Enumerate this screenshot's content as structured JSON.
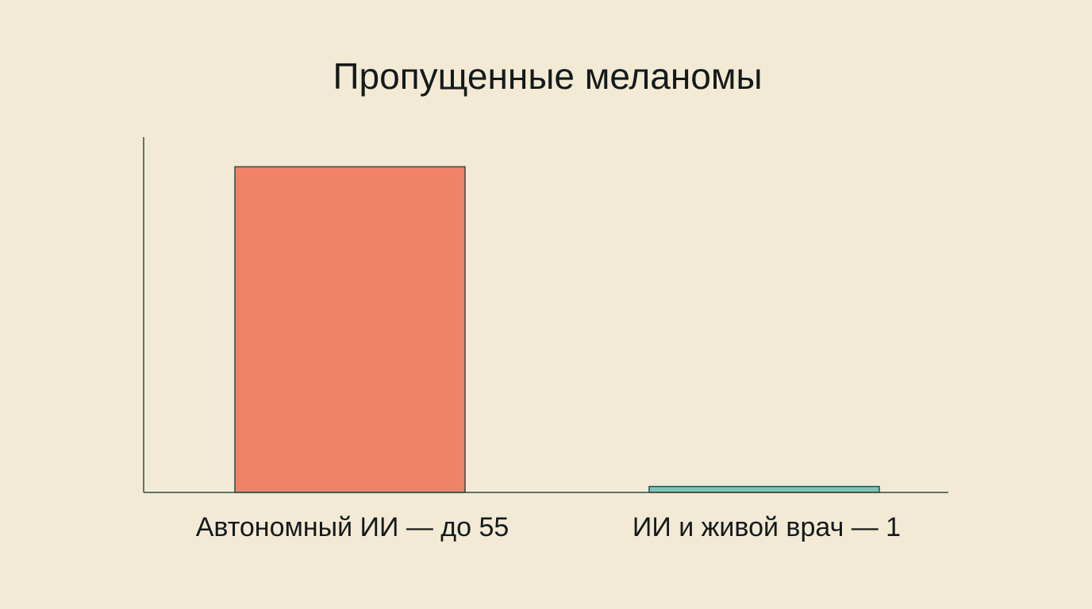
{
  "chart_data": {
    "type": "bar",
    "title": "Пропущенные меланомы",
    "categories": [
      "Автономный ИИ — до 55",
      "ИИ и живой врач — 1"
    ],
    "values": [
      55,
      1
    ],
    "colors": [
      "#f0826a",
      "#7cc4b8"
    ],
    "ylim": [
      0,
      60
    ]
  }
}
